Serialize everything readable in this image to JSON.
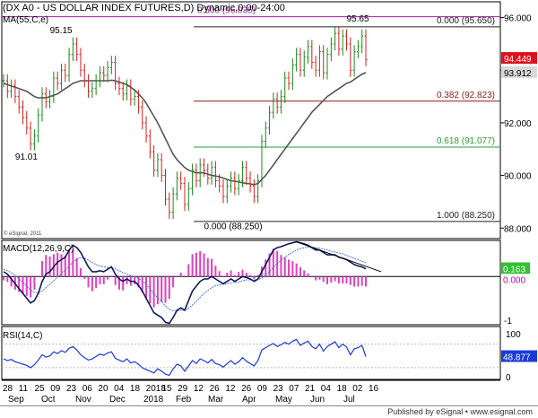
{
  "chart_data": {
    "type": "line",
    "title": "(DX A0 - US DOLLAR INDEX FUTURES,D) Dynamic,0:00-24:00",
    "ma_label": "MA(55,C,e)",
    "credit": "© eSignal, 2011",
    "price_panel": {
      "ylim": [
        87.6,
        96.6
      ],
      "ticks": [
        "96.000",
        "94.000",
        "92.000",
        "90.000",
        "88.000"
      ],
      "tick_values": [
        96,
        94,
        92,
        90,
        88
      ],
      "last_price": "94.449",
      "ma_value": "93.912",
      "fib_levels": [
        {
          "label": "0.000 (95.650)",
          "value": 95.65,
          "color": "#222222"
        },
        {
          "label": "0.382 (92.823)",
          "value": 92.823,
          "color": "#8b1a1a"
        },
        {
          "label": "0.618 (91.077)",
          "value": 91.077,
          "color": "#2e9b2e"
        },
        {
          "label": "1.000 (88.250)",
          "value": 88.25,
          "color": "#222222"
        }
      ],
      "level_500": {
        "label": "0.500 (96.035)",
        "value": 96.035,
        "color": "#a020a0"
      },
      "annotations": [
        {
          "text": "95.15",
          "x": 12,
          "y": 95.4
        },
        {
          "text": "91.01",
          "x": 3,
          "y": 90.6
        },
        {
          "text": "95.65",
          "x": 89,
          "y": 95.85
        },
        {
          "text": "0.000 (88.250)",
          "x": 52,
          "y": 87.95
        },
        {
          "text": "88.25",
          "x": 52,
          "y": 87.1
        }
      ],
      "closes": [
        93.6,
        93.2,
        93.4,
        93.0,
        92.6,
        92.2,
        91.8,
        91.2,
        91.5,
        92.3,
        93.1,
        92.8,
        93.0,
        93.7,
        93.5,
        94.0,
        93.8,
        94.6,
        95.0,
        94.6,
        94.0,
        93.6,
        93.2,
        93.3,
        93.6,
        93.9,
        93.8,
        94.1,
        94.3,
        93.5,
        93.3,
        93.1,
        93.4,
        92.9,
        93.0,
        92.6,
        92.0,
        91.5,
        90.9,
        90.2,
        90.6,
        90.0,
        89.1,
        88.6,
        89.3,
        89.9,
        89.7,
        88.9,
        89.5,
        90.2,
        89.8,
        90.4,
        90.2,
        89.9,
        90.3,
        89.8,
        89.6,
        89.2,
        89.6,
        89.9,
        89.5,
        89.8,
        90.3,
        89.9,
        89.6,
        89.2,
        89.8,
        91.3,
        91.8,
        92.4,
        92.9,
        92.6,
        93.0,
        93.7,
        93.5,
        94.2,
        94.6,
        94.0,
        94.5,
        94.9,
        94.3,
        94.0,
        94.7,
        93.9,
        94.6,
        95.0,
        95.4,
        94.8,
        95.3,
        95.0,
        94.0,
        94.7,
        94.9,
        95.3,
        94.4
      ],
      "ma": [
        93.5,
        93.45,
        93.4,
        93.35,
        93.3,
        93.25,
        93.2,
        93.1,
        93.0,
        92.95,
        92.95,
        92.95,
        93.0,
        93.05,
        93.1,
        93.2,
        93.3,
        93.4,
        93.5,
        93.55,
        93.6,
        93.6,
        93.6,
        93.6,
        93.6,
        93.6,
        93.6,
        93.6,
        93.62,
        93.6,
        93.55,
        93.5,
        93.45,
        93.35,
        93.25,
        93.1,
        92.95,
        92.75,
        92.5,
        92.25,
        92.0,
        91.7,
        91.4,
        91.1,
        90.8,
        90.6,
        90.45,
        90.3,
        90.2,
        90.15,
        90.1,
        90.1,
        90.1,
        90.05,
        90.0,
        89.98,
        89.95,
        89.9,
        89.85,
        89.8,
        89.78,
        89.75,
        89.72,
        89.7,
        89.68,
        89.65,
        89.7,
        89.85,
        90.0,
        90.2,
        90.4,
        90.6,
        90.8,
        91.0,
        91.2,
        91.4,
        91.6,
        91.8,
        92.0,
        92.2,
        92.4,
        92.55,
        92.7,
        92.85,
        93.0,
        93.1,
        93.2,
        93.3,
        93.4,
        93.5,
        93.55,
        93.65,
        93.75,
        93.85,
        93.91
      ]
    },
    "macd_panel": {
      "label": "MACD(12,26,9,C)",
      "ylim": [
        -1.0,
        0.75
      ],
      "zero_label": "0.000",
      "value_label": "0.163",
      "min_tick": "-1",
      "macd": [
        0.1,
        0.05,
        -0.05,
        -0.15,
        -0.25,
        -0.35,
        -0.45,
        -0.55,
        -0.5,
        -0.35,
        -0.1,
        0.05,
        0.1,
        0.2,
        0.3,
        0.35,
        0.4,
        0.55,
        0.65,
        0.6,
        0.5,
        0.35,
        0.2,
        0.1,
        0.1,
        0.12,
        0.1,
        0.15,
        0.2,
        0.05,
        -0.05,
        -0.1,
        -0.05,
        -0.1,
        -0.1,
        -0.18,
        -0.3,
        -0.45,
        -0.6,
        -0.75,
        -0.8,
        -0.85,
        -0.95,
        -0.97,
        -0.85,
        -0.7,
        -0.65,
        -0.7,
        -0.5,
        -0.3,
        -0.2,
        -0.1,
        -0.05,
        -0.05,
        0.0,
        -0.05,
        -0.1,
        -0.15,
        -0.1,
        -0.05,
        -0.1,
        -0.05,
        0.0,
        -0.02,
        -0.05,
        -0.1,
        -0.05,
        0.1,
        0.25,
        0.4,
        0.55,
        0.6,
        0.62,
        0.65,
        0.68,
        0.7,
        0.72,
        0.7,
        0.68,
        0.65,
        0.6,
        0.55,
        0.55,
        0.5,
        0.45,
        0.45,
        0.45,
        0.4,
        0.38,
        0.35,
        0.3,
        0.25,
        0.22,
        0.2,
        0.16
      ],
      "signal": [
        0.15,
        0.12,
        0.08,
        0.02,
        -0.05,
        -0.12,
        -0.2,
        -0.28,
        -0.33,
        -0.34,
        -0.3,
        -0.23,
        -0.16,
        -0.09,
        -0.01,
        0.06,
        0.13,
        0.21,
        0.3,
        0.36,
        0.39,
        0.38,
        0.34,
        0.29,
        0.25,
        0.22,
        0.2,
        0.19,
        0.19,
        0.16,
        0.12,
        0.08,
        0.05,
        0.02,
        0.0,
        -0.04,
        -0.09,
        -0.16,
        -0.25,
        -0.35,
        -0.44,
        -0.52,
        -0.61,
        -0.68,
        -0.71,
        -0.71,
        -0.7,
        -0.7,
        -0.66,
        -0.59,
        -0.51,
        -0.43,
        -0.35,
        -0.29,
        -0.23,
        -0.19,
        -0.17,
        -0.16,
        -0.15,
        -0.13,
        -0.12,
        -0.11,
        -0.09,
        -0.07,
        -0.07,
        -0.07,
        -0.07,
        -0.03,
        0.03,
        0.1,
        0.19,
        0.27,
        0.34,
        0.4,
        0.46,
        0.5,
        0.55,
        0.58,
        0.6,
        0.61,
        0.61,
        0.6,
        0.59,
        0.57,
        0.55,
        0.53,
        0.51,
        0.49,
        0.47,
        0.44,
        0.41,
        0.38,
        0.35,
        0.32,
        0.29
      ]
    },
    "rsi_panel": {
      "label": "RSI(14,C)",
      "ylim": [
        10,
        100
      ],
      "ticks": [
        "100",
        "0"
      ],
      "value_label": "48.877",
      "values": [
        45,
        42,
        44,
        40,
        38,
        36,
        34,
        30,
        35,
        43,
        52,
        48,
        50,
        57,
        54,
        59,
        56,
        63,
        66,
        60,
        52,
        47,
        43,
        45,
        49,
        53,
        51,
        55,
        57,
        46,
        43,
        40,
        45,
        38,
        40,
        36,
        30,
        27,
        24,
        21,
        28,
        24,
        19,
        17,
        28,
        36,
        33,
        24,
        33,
        42,
        37,
        45,
        42,
        38,
        44,
        37,
        35,
        31,
        37,
        42,
        36,
        40,
        47,
        41,
        37,
        33,
        42,
        60,
        64,
        68,
        71,
        66,
        69,
        73,
        70,
        75,
        78,
        68,
        72,
        75,
        66,
        62,
        70,
        58,
        66,
        70,
        74,
        64,
        70,
        65,
        52,
        62,
        64,
        68,
        48.877
      ]
    },
    "x_ticks_day": [
      "28",
      "11",
      "25",
      "09",
      "23",
      "06",
      "20",
      "04",
      "18",
      "2018",
      "15",
      "29",
      "12",
      "26",
      "12",
      "26",
      "09",
      "23",
      "07",
      "21",
      "04",
      "18",
      "02",
      "16"
    ],
    "x_ticks_month": [
      "Sep",
      "Oct",
      "Nov",
      "Dec",
      "2018",
      "Feb",
      "Mar",
      "Apr",
      "May",
      "Jun",
      "Jul"
    ],
    "footer": "Published by eSignal • www.esignal.com"
  }
}
